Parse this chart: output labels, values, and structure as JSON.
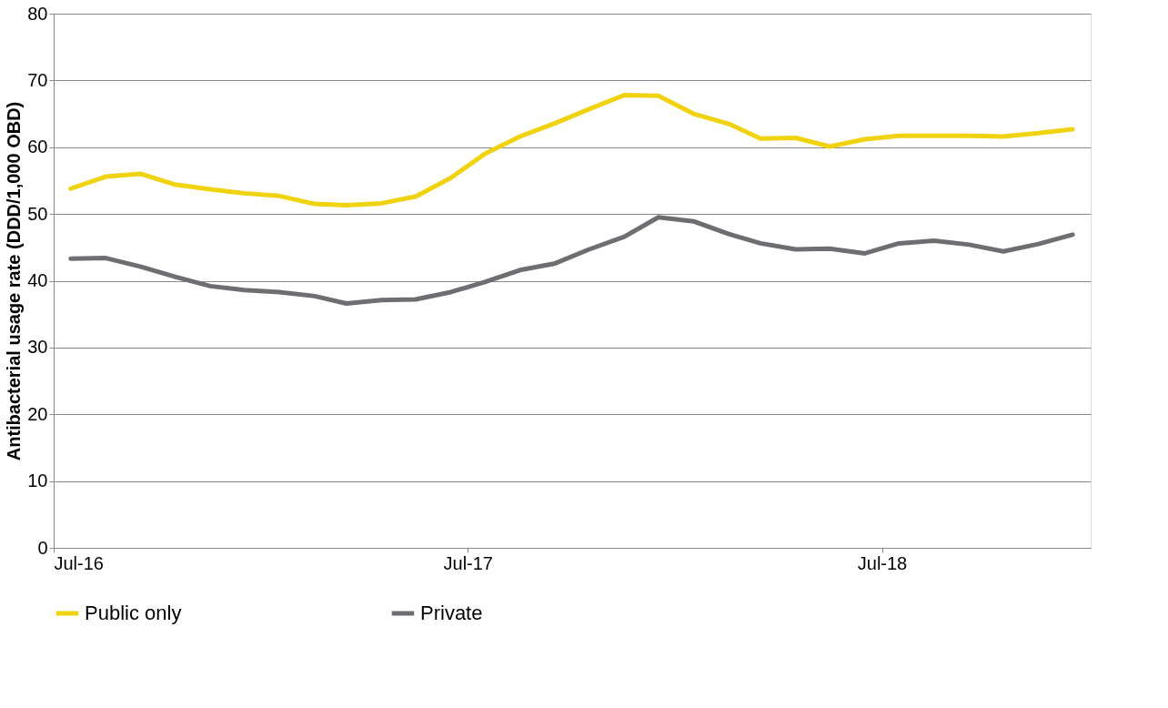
{
  "chart_data": {
    "type": "line",
    "ylabel": "Antibacterial usage rate (DDD/1,000 OBD)",
    "x": [
      "2016-07-16",
      "2016-08-16",
      "2016-09-16",
      "2016-10-16",
      "2016-11-16",
      "2016-12-16",
      "2017-01-16",
      "2017-02-16",
      "2017-03-16",
      "2017-04-16",
      "2017-05-16",
      "2017-06-16",
      "2017-07-16",
      "2017-08-16",
      "2017-09-16",
      "2017-10-16",
      "2017-11-16",
      "2017-12-16",
      "2018-01-16",
      "2018-02-16",
      "2018-03-16",
      "2018-04-16",
      "2018-05-16",
      "2018-06-16",
      "2018-07-16",
      "2018-08-16",
      "2018-09-16",
      "2018-10-16",
      "2018-11-16",
      "2018-12-16"
    ],
    "series": [
      {
        "name": "Public only",
        "color": "#f0d20f",
        "values": [
          53.8,
          55.6,
          56.0,
          54.4,
          53.7,
          53.1,
          52.7,
          51.5,
          51.3,
          51.6,
          52.6,
          55.4,
          59.0,
          61.6,
          63.6,
          65.7,
          67.8,
          67.7,
          65.0,
          63.5,
          61.3,
          61.4,
          60.1,
          61.2,
          61.7,
          61.7,
          61.7,
          61.6,
          62.1,
          62.7
        ]
      },
      {
        "name": "Private",
        "color": "#6d6e71",
        "values": [
          43.3,
          43.4,
          42.1,
          40.6,
          39.2,
          38.6,
          38.3,
          37.7,
          36.6,
          37.1,
          37.2,
          38.3,
          39.8,
          41.6,
          42.6,
          44.7,
          46.6,
          49.5,
          48.9,
          47.0,
          45.6,
          44.7,
          44.8,
          44.1,
          45.6,
          46.0,
          45.4,
          44.4,
          45.5,
          46.9
        ]
      }
    ],
    "xlim": [
      "2016-07-01",
      "2019-01-01"
    ],
    "xticks": [
      {
        "value": "2016-07-01",
        "label": "Jul-16"
      },
      {
        "value": "2017-07-01",
        "label": "Jul-17"
      },
      {
        "value": "2018-07-01",
        "label": "Jul-18"
      }
    ],
    "ylim": [
      0,
      80
    ],
    "yticks": [
      0,
      10,
      20,
      30,
      40,
      50,
      60,
      70,
      80
    ],
    "grid": "y",
    "legend": "bottom",
    "marker": "none",
    "line_style": "solid"
  }
}
